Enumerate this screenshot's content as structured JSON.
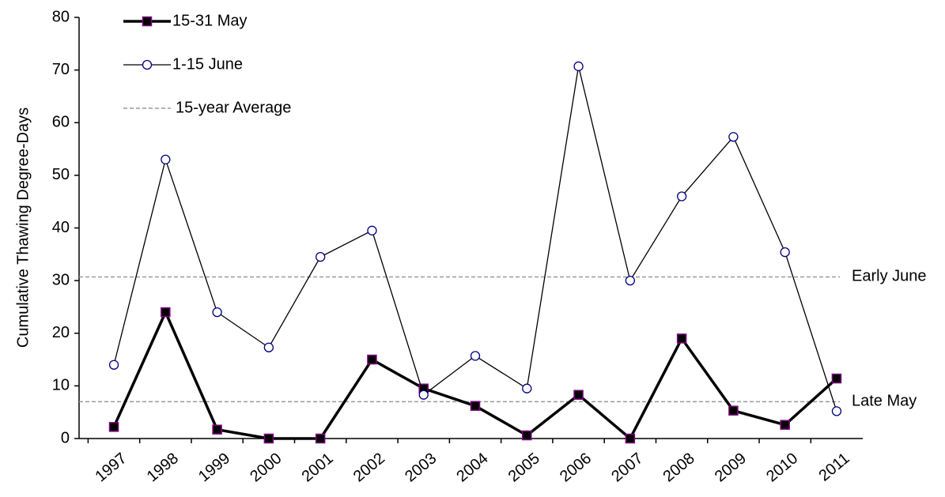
{
  "chart_data": {
    "type": "line",
    "y_label": "Cumulative Thawing Degree-Days",
    "categories": [
      "1997",
      "1998",
      "1999",
      "2000",
      "2001",
      "2002",
      "2003",
      "2004",
      "2005",
      "2006",
      "2007",
      "2008",
      "2009",
      "2010",
      "2011"
    ],
    "series": [
      {
        "name": "15-31 May",
        "color": "#000000",
        "marker": "square",
        "marker_edge": "#800080",
        "values": [
          2.2,
          24,
          1.7,
          0,
          0,
          15,
          9.5,
          6.2,
          0.6,
          8.3,
          0,
          19,
          5.3,
          2.6,
          11.4
        ]
      },
      {
        "name": "1-15 June",
        "color": "#000000",
        "marker": "circle",
        "marker_edge": "#000080",
        "values": [
          14,
          53,
          24,
          17.3,
          34.5,
          39.5,
          8.3,
          15.7,
          9.5,
          70.7,
          30,
          46,
          57.3,
          35.4,
          5.2
        ]
      }
    ],
    "reference_lines": {
      "name": "15-year Average",
      "color": "#999999",
      "lines": [
        {
          "label": "Early June",
          "value": 30.7
        },
        {
          "label": "Late May",
          "value": 7
        }
      ]
    },
    "ylim": [
      0,
      80
    ],
    "yticks": [
      0,
      10,
      20,
      30,
      40,
      50,
      60,
      70,
      80
    ],
    "legend": "upper left"
  }
}
